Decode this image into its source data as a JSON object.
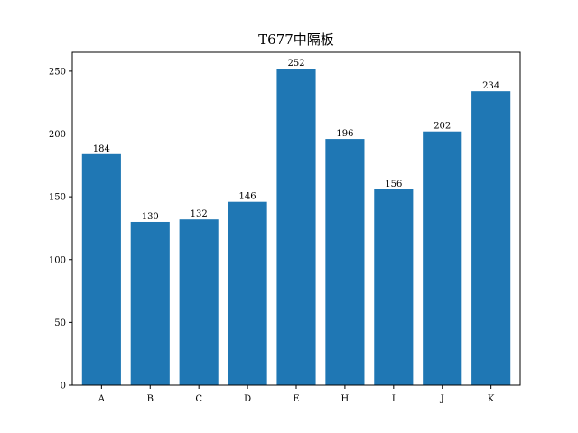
{
  "chart_data": {
    "type": "bar",
    "title": "T677中隔板",
    "xlabel": "",
    "ylabel": "",
    "categories": [
      "A",
      "B",
      "C",
      "D",
      "E",
      "H",
      "I",
      "J",
      "K"
    ],
    "values": [
      184,
      130,
      132,
      146,
      252,
      196,
      156,
      202,
      234
    ],
    "data_labels": [
      "184",
      "130",
      "132",
      "146",
      "252",
      "196",
      "156",
      "202",
      "234"
    ],
    "ylim": [
      0,
      265
    ],
    "yticks": [
      0,
      50,
      100,
      150,
      200,
      250
    ],
    "ytick_labels": [
      "0",
      "50",
      "100",
      "150",
      "200",
      "250"
    ],
    "bar_color": "#1f77b4",
    "grid": false,
    "legend": "none"
  }
}
